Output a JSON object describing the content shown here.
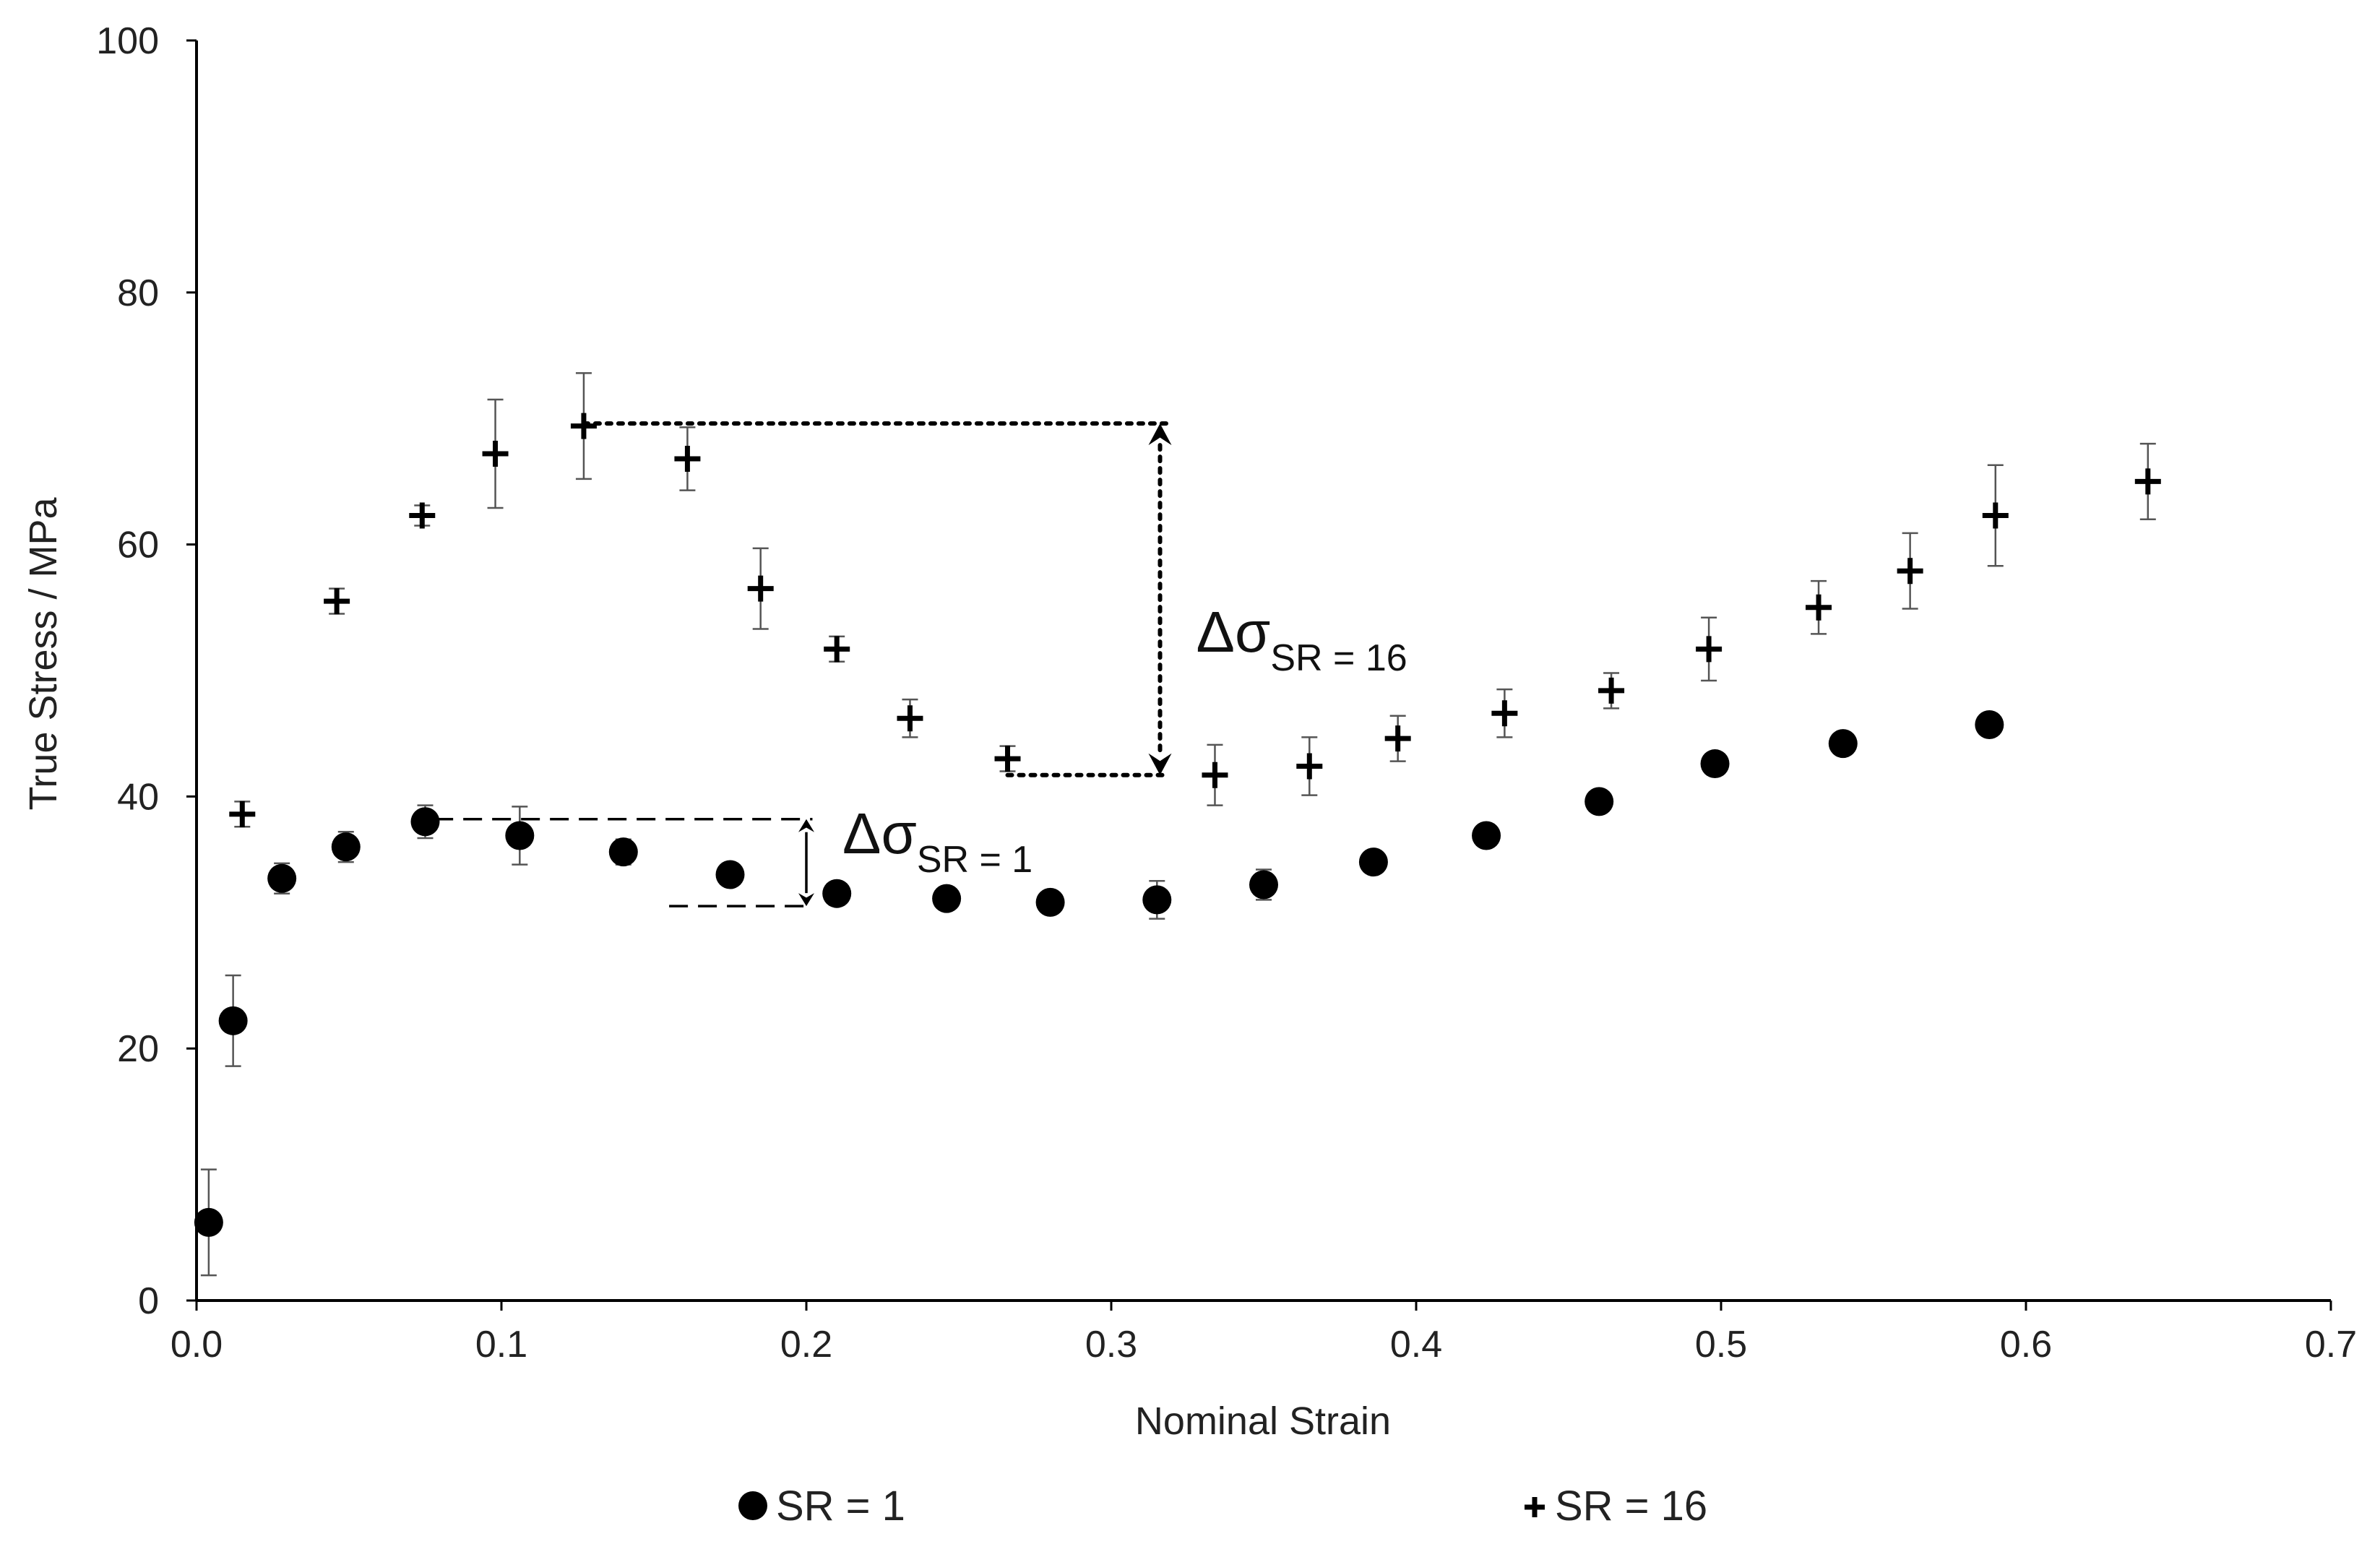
{
  "chart_data": {
    "type": "scatter",
    "title": "",
    "xlabel": "Nominal Strain",
    "ylabel": "True Stress / MPa",
    "xlim": [
      0,
      0.7
    ],
    "ylim": [
      0,
      100
    ],
    "x_ticks": [
      "0.0",
      "0.1",
      "0.2",
      "0.3",
      "0.4",
      "0.5",
      "0.6",
      "0.7"
    ],
    "y_ticks": [
      "0",
      "20",
      "40",
      "60",
      "80",
      "100"
    ],
    "grid": false,
    "legend_position": "bottom",
    "series": [
      {
        "name": "SR = 1",
        "marker": "circle",
        "points": [
          {
            "x": 0.004,
            "y": 6.2,
            "err": 4.2
          },
          {
            "x": 0.012,
            "y": 22.2,
            "err": 3.6
          },
          {
            "x": 0.028,
            "y": 33.5,
            "err": 1.2
          },
          {
            "x": 0.049,
            "y": 36.0,
            "err": 1.2
          },
          {
            "x": 0.075,
            "y": 38.0,
            "err": 1.3
          },
          {
            "x": 0.106,
            "y": 36.9,
            "err": 2.3
          },
          {
            "x": 0.14,
            "y": 35.6,
            "err": 1.0
          },
          {
            "x": 0.175,
            "y": 33.8,
            "err": 0.8
          },
          {
            "x": 0.21,
            "y": 32.3,
            "err": 0.8
          },
          {
            "x": 0.246,
            "y": 31.9,
            "err": 0.8
          },
          {
            "x": 0.28,
            "y": 31.6,
            "err": 0.8
          },
          {
            "x": 0.315,
            "y": 31.8,
            "err": 1.5
          },
          {
            "x": 0.35,
            "y": 33.0,
            "err": 1.2
          },
          {
            "x": 0.386,
            "y": 34.8,
            "err": 0.5
          },
          {
            "x": 0.423,
            "y": 36.9,
            "err": 0.5
          },
          {
            "x": 0.46,
            "y": 39.6,
            "err": 0.5
          },
          {
            "x": 0.498,
            "y": 42.6,
            "err": 0.5
          },
          {
            "x": 0.54,
            "y": 44.2,
            "err": 0.5
          },
          {
            "x": 0.588,
            "y": 45.7,
            "err": 0.5
          }
        ]
      },
      {
        "name": "SR = 16",
        "marker": "plus",
        "points": [
          {
            "x": 0.015,
            "y": 38.6,
            "err": 1.0
          },
          {
            "x": 0.046,
            "y": 55.5,
            "err": 1.0
          },
          {
            "x": 0.074,
            "y": 62.3,
            "err": 0.8
          },
          {
            "x": 0.098,
            "y": 67.2,
            "err": 4.3
          },
          {
            "x": 0.127,
            "y": 69.4,
            "err": 4.2
          },
          {
            "x": 0.161,
            "y": 66.8,
            "err": 2.5
          },
          {
            "x": 0.185,
            "y": 56.5,
            "err": 3.2
          },
          {
            "x": 0.21,
            "y": 51.7,
            "err": 1.0
          },
          {
            "x": 0.234,
            "y": 46.2,
            "err": 1.5
          },
          {
            "x": 0.266,
            "y": 43.0,
            "err": 1.0
          },
          {
            "x": 0.334,
            "y": 41.7,
            "err": 2.4
          },
          {
            "x": 0.365,
            "y": 42.4,
            "err": 2.3
          },
          {
            "x": 0.394,
            "y": 44.6,
            "err": 1.8
          },
          {
            "x": 0.429,
            "y": 46.6,
            "err": 1.9
          },
          {
            "x": 0.464,
            "y": 48.4,
            "err": 1.4
          },
          {
            "x": 0.496,
            "y": 51.7,
            "err": 2.5
          },
          {
            "x": 0.532,
            "y": 55.0,
            "err": 2.1
          },
          {
            "x": 0.562,
            "y": 57.9,
            "err": 3.0
          },
          {
            "x": 0.59,
            "y": 62.3,
            "err": 4.0
          },
          {
            "x": 0.64,
            "y": 65.0,
            "err": 3.0
          }
        ]
      }
    ],
    "annotations": [
      {
        "label_main": "Δσ",
        "label_sub": "SR = 16",
        "style": "dotted",
        "x_from": 0.127,
        "x_to": 0.318,
        "y_top": 69.6,
        "y_bottom": 41.7,
        "x_lower_start": 0.266,
        "arrow_x": 0.316
      },
      {
        "label_main": "Δσ",
        "label_sub": "SR = 1",
        "style": "dashed",
        "x_from": 0.078,
        "x_to": 0.202,
        "y_top": 38.2,
        "y_bottom": 31.3,
        "x_lower_start": 0.155,
        "arrow_x": 0.2
      }
    ],
    "legend": [
      {
        "label": "SR = 1",
        "marker": "circle"
      },
      {
        "label": "SR = 16",
        "marker": "plus"
      }
    ]
  }
}
